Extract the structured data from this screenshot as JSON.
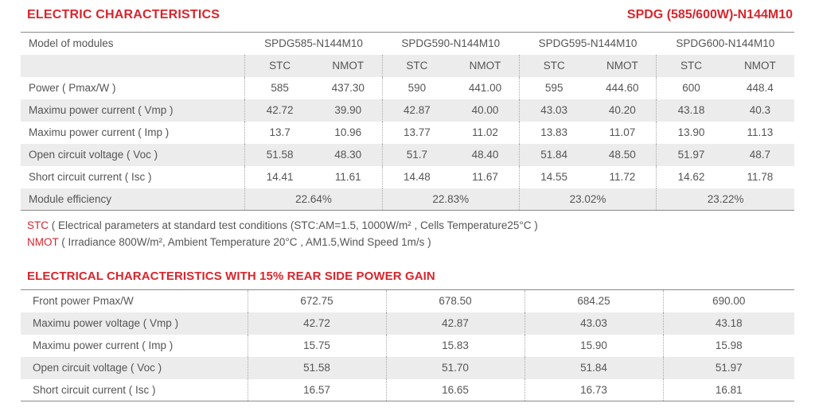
{
  "header": {
    "title": "ELECTRIC CHARACTERISTICS",
    "series": "SPDG (585/600W)-N144M10"
  },
  "table1": {
    "model_label": "Model of modules",
    "models": [
      "SPDG585-N144M10",
      "SPDG590-N144M10",
      "SPDG595-N144M10",
      "SPDG600-N144M10"
    ],
    "stc": "STC",
    "nmot": "NMOT",
    "rows": [
      {
        "label": "Power ( Pmax/W )",
        "values": [
          "585",
          "437.30",
          "590",
          "441.00",
          "595",
          "444.60",
          "600",
          "448.4"
        ]
      },
      {
        "label": "Maximu power current ( Vmp )",
        "values": [
          "42.72",
          "39.90",
          "42.87",
          "40.00",
          "43.03",
          "40.20",
          "43.18",
          "40.3"
        ]
      },
      {
        "label": "Maximu power current ( Imp )",
        "values": [
          "13.7",
          "10.96",
          "13.77",
          "11.02",
          "13.83",
          "11.07",
          "13.90",
          "11.13"
        ]
      },
      {
        "label": "Open circuit voltage ( Voc )",
        "values": [
          "51.58",
          "48.30",
          "51.7",
          "48.40",
          "51.84",
          "48.50",
          "51.97",
          "48.7"
        ]
      },
      {
        "label": "Short circuit current ( Isc )",
        "values": [
          "14.41",
          "11.61",
          "14.48",
          "11.67",
          "14.55",
          "11.72",
          "14.62",
          "11.78"
        ]
      }
    ],
    "efficiency": {
      "label": "Module efficiency",
      "values": [
        "22.64%",
        "22.83%",
        "23.02%",
        "23.22%"
      ]
    }
  },
  "notes": {
    "stc_key": "STC",
    "stc_text": " ( Electrical parameters at standard test conditions (STC:AM=1.5, 1000W/m² , Cells Temperature25°C )",
    "nmot_key": "NMOT",
    "nmot_text": " ( Irradiance 800W/m², Ambient Temperature 20°C , AM1.5,Wind Speed 1m/s )"
  },
  "section2": {
    "title": "ELECTRICAL CHARACTERISTICS WITH 15% REAR SIDE POWER GAIN"
  },
  "table2": {
    "rows": [
      {
        "label": "Front power Pmax/W",
        "values": [
          "672.75",
          "678.50",
          "684.25",
          "690.00"
        ]
      },
      {
        "label": "Maximu power voltage ( Vmp )",
        "values": [
          "42.72",
          "42.87",
          "43.03",
          "43.18"
        ]
      },
      {
        "label": "Maximu power current ( Imp )",
        "values": [
          "15.75",
          "15.83",
          "15.90",
          "15.98"
        ]
      },
      {
        "label": "Open circuit voltage ( Voc )",
        "values": [
          "51.58",
          "51.70",
          "51.84",
          "51.97"
        ]
      },
      {
        "label": "Short circuit current ( Isc )",
        "values": [
          "16.57",
          "16.65",
          "16.73",
          "16.81"
        ]
      }
    ]
  }
}
